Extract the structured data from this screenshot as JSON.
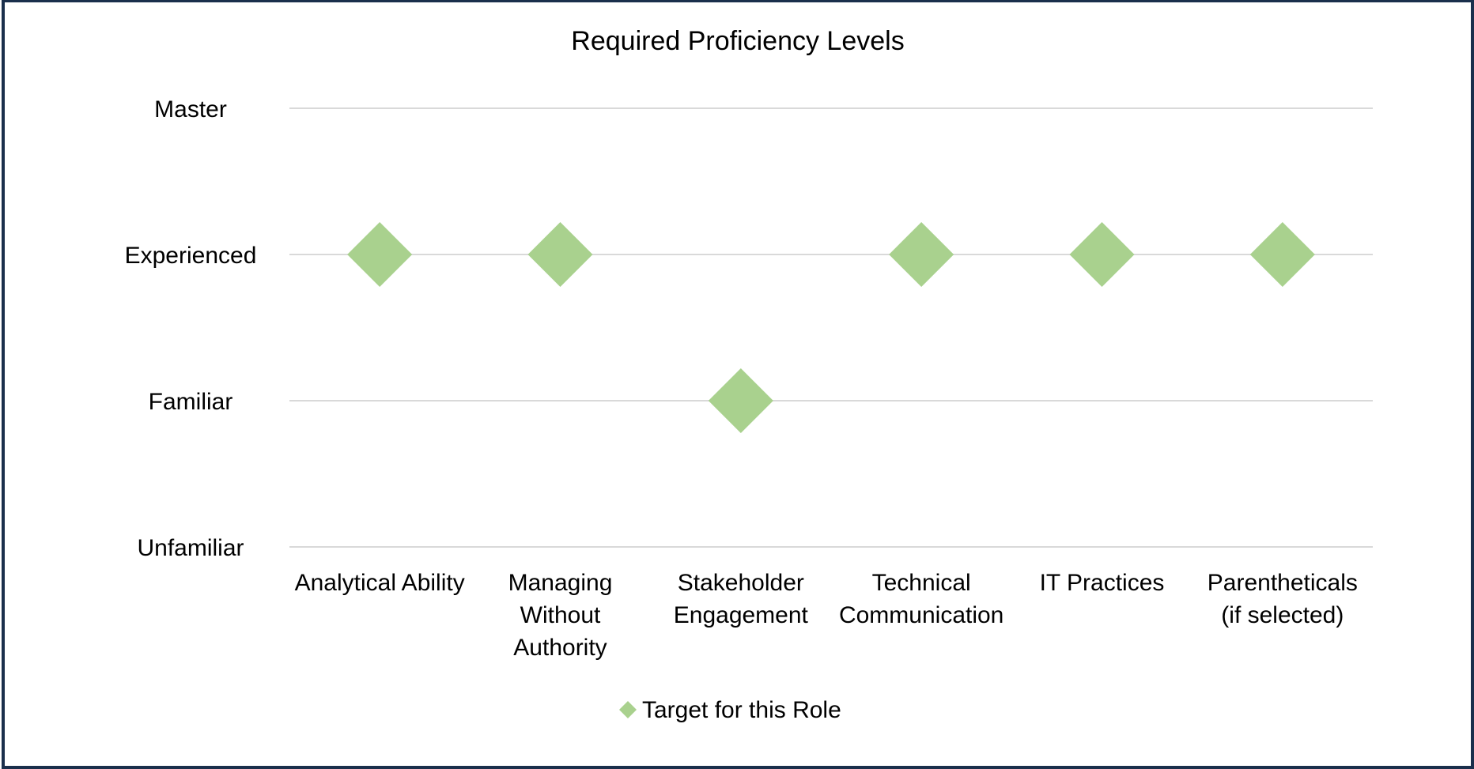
{
  "chart_data": {
    "type": "scatter",
    "title": "Required Proficiency Levels",
    "xlabel": "",
    "ylabel": "",
    "categories": [
      "Analytical Ability",
      "Managing Without Authority",
      "Stakeholder Engagement",
      "Technical Communication",
      "IT Practices",
      "Parentheticals (if selected)"
    ],
    "category_lines": [
      [
        "Analytical Ability"
      ],
      [
        "Managing",
        "Without",
        "Authority"
      ],
      [
        "Stakeholder",
        "Engagement"
      ],
      [
        "Technical",
        "Communication"
      ],
      [
        "IT Practices"
      ],
      [
        "Parentheticals",
        "(if selected)"
      ]
    ],
    "y_levels": [
      "Unfamiliar",
      "Familiar",
      "Experienced",
      "Master"
    ],
    "ylim": [
      0,
      3
    ],
    "grid": true,
    "legend_position": "bottom",
    "series": [
      {
        "name": "Target for this Role",
        "color": "#a9d18e",
        "marker": "diamond",
        "values": [
          2,
          2,
          1,
          2,
          2,
          2
        ]
      }
    ]
  },
  "colors": {
    "frame_border": "#1a2f4c",
    "gridline": "#d9d9d9"
  }
}
